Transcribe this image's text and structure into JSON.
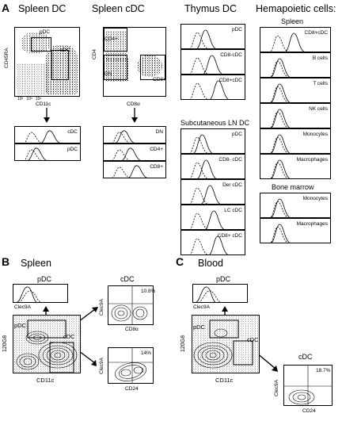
{
  "panelA": {
    "letter": "A",
    "col1": {
      "title": "Spleen DC",
      "gate_pdc": "pDC",
      "gate_cdc": "cDC",
      "xlabel": "CD11c",
      "ylabel": "CD45RA",
      "hist": [
        "cDC",
        "pDC"
      ]
    },
    "col2": {
      "title": "Spleen cDC",
      "gate_cd4": "CD4+",
      "gate_dn": "DN",
      "gate_cd8": "CD8+",
      "xlabel": "CD8α",
      "ylabel": "CD4",
      "hist": [
        "DN",
        "CD4+",
        "CD8+"
      ]
    },
    "col3": {
      "title": "Thymus DC",
      "hist_top": [
        "pDC",
        "CD8-cDC",
        "CD8+cDC"
      ],
      "subtitle": "Subcutaneous LN DC",
      "hist_bottom": [
        "pDC",
        "CD8- cDC",
        "Der cDC",
        "LC cDC",
        "CD8+ cDC"
      ]
    },
    "col4": {
      "title": "Hemapoietic cells:",
      "sub1": "Spleen",
      "hist_top": [
        "CD8+cDC",
        "B cells",
        "T cells",
        "NK cells",
        "Monocytes",
        "Macrophages"
      ],
      "sub2": "Bone marrow",
      "hist_bottom": [
        "Monocytes",
        "Macrophages"
      ]
    },
    "ticks": [
      "10²",
      "10³",
      "10⁴"
    ]
  },
  "panelB": {
    "letter": "B",
    "title": "Spleen",
    "pdc_hist_label": "pDC",
    "pdc_hist_xlabel": "Clec9A",
    "main_pdc": "pDC",
    "main_cdc": "cDC",
    "main_x": "CD11c",
    "main_y": "120G8",
    "cdc_label": "cDC",
    "plot1": {
      "pct": "10.8%",
      "x": "CD8α",
      "y": "Clec9A"
    },
    "plot2": {
      "pct": "14%",
      "x": "CD24",
      "y": "Clec9A"
    }
  },
  "panelC": {
    "letter": "C",
    "title": "Blood",
    "pdc_hist_label": "pDC",
    "pdc_hist_xlabel": "Clec9A",
    "main_pdc": "pDC",
    "main_cdc": "cDC",
    "main_x": "CD11c",
    "main_y": "120G8",
    "cdc_label": "cDC",
    "plot1": {
      "pct": "18.7%",
      "x": "CD24",
      "y": "Clec9A"
    }
  }
}
